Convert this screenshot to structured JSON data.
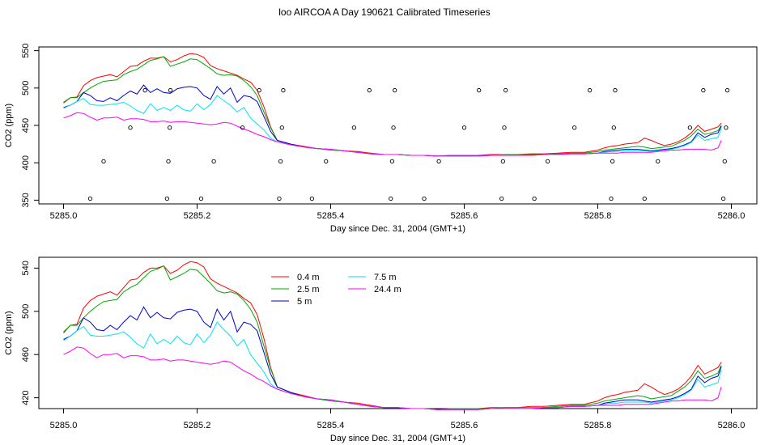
{
  "title": "loo AIRCOA A  Day 190621  Calibrated Timeseries",
  "chart_data": [
    {
      "type": "line",
      "xlabel": "Day since Dec. 31, 2004 (GMT+1)",
      "ylabel": "CO2 (ppm)",
      "xlim": [
        5285.0,
        5286.0
      ],
      "ylim": [
        345,
        555
      ],
      "xticks": [
        5285.0,
        5285.2,
        5285.4,
        5285.6,
        5285.8,
        5286.0
      ],
      "xtick_labels": [
        "5285.0",
        "5285.2",
        "5285.4",
        "5285.6",
        "5285.8",
        "5286.0"
      ],
      "yticks": [
        350,
        400,
        450,
        500,
        550
      ],
      "ytick_labels": [
        "350",
        "400",
        "450",
        "500",
        "550"
      ],
      "grid": false,
      "legend": null,
      "series_ref": "shared",
      "points": {
        "name": "",
        "x": [
          5285.04,
          5285.06,
          5285.1,
          5285.122,
          5285.155,
          5285.157,
          5285.159,
          5285.16,
          5285.206,
          5285.225,
          5285.268,
          5285.293,
          5285.323,
          5285.325,
          5285.327,
          5285.329,
          5285.372,
          5285.393,
          5285.435,
          5285.458,
          5285.49,
          5285.492,
          5285.494,
          5285.496,
          5285.54,
          5285.562,
          5285.6,
          5285.622,
          5285.656,
          5285.658,
          5285.66,
          5285.662,
          5285.705,
          5285.725,
          5285.765,
          5285.788,
          5285.82,
          5285.822,
          5285.824,
          5285.826,
          5285.87,
          5285.89,
          5285.938,
          5285.958,
          5285.988,
          5285.99,
          5285.992,
          5285.994
        ],
        "y": [
          352,
          402,
          447,
          497,
          352,
          402,
          447,
          497,
          352,
          402,
          447,
          497,
          352,
          402,
          447,
          497,
          352,
          402,
          447,
          497,
          352,
          402,
          447,
          497,
          352,
          402,
          447,
          497,
          352,
          402,
          447,
          497,
          352,
          402,
          447,
          497,
          352,
          402,
          447,
          497,
          352,
          402,
          447,
          497,
          352,
          402,
          447,
          497
        ]
      }
    },
    {
      "type": "line",
      "xlabel": "Day since Dec. 31, 2004 (GMT+1)",
      "ylabel": "CO2 (ppm)",
      "xlim": [
        5285.0,
        5286.0
      ],
      "ylim": [
        410,
        550
      ],
      "xticks": [
        5285.0,
        5285.2,
        5285.4,
        5285.6,
        5285.8,
        5286.0
      ],
      "xtick_labels": [
        "5285.0",
        "5285.2",
        "5285.4",
        "5285.6",
        "5285.8",
        "5286.0"
      ],
      "yticks": [
        420,
        460,
        500,
        540
      ],
      "ytick_labels": [
        "420",
        "460",
        "500",
        "540"
      ],
      "grid": false,
      "legend": "top-left inside plot",
      "series_ref": "shared"
    }
  ],
  "shared_x": [
    5285.0,
    5285.01,
    5285.02,
    5285.03,
    5285.04,
    5285.05,
    5285.06,
    5285.07,
    5285.08,
    5285.09,
    5285.1,
    5285.11,
    5285.12,
    5285.13,
    5285.14,
    5285.15,
    5285.16,
    5285.17,
    5285.18,
    5285.19,
    5285.2,
    5285.21,
    5285.22,
    5285.23,
    5285.24,
    5285.25,
    5285.26,
    5285.27,
    5285.28,
    5285.29,
    5285.3,
    5285.31,
    5285.32,
    5285.34,
    5285.36,
    5285.38,
    5285.4,
    5285.42,
    5285.44,
    5285.46,
    5285.48,
    5285.5,
    5285.52,
    5285.54,
    5285.56,
    5285.58,
    5285.6,
    5285.62,
    5285.64,
    5285.66,
    5285.68,
    5285.7,
    5285.72,
    5285.74,
    5285.76,
    5285.78,
    5285.8,
    5285.81,
    5285.82,
    5285.83,
    5285.84,
    5285.85,
    5285.86,
    5285.87,
    5285.88,
    5285.89,
    5285.9,
    5285.91,
    5285.92,
    5285.93,
    5285.94,
    5285.95,
    5285.96,
    5285.97,
    5285.98,
    5285.985
  ],
  "series": [
    {
      "name": "0.4 m",
      "color": "#ff0000",
      "values": [
        480,
        487,
        488,
        503,
        510,
        514,
        516,
        518,
        515,
        522,
        529,
        530,
        536,
        540,
        540,
        542,
        535,
        538,
        543,
        546,
        545,
        541,
        530,
        526,
        523,
        520,
        517,
        512,
        508,
        497,
        475,
        448,
        430,
        425,
        422,
        419,
        418,
        416,
        415,
        413,
        411,
        411,
        410,
        410,
        409,
        410,
        410,
        410,
        411,
        411,
        411,
        412,
        412,
        413,
        414,
        414,
        417,
        420,
        422,
        423,
        425,
        426,
        427,
        433,
        430,
        426,
        423,
        425,
        428,
        433,
        440,
        450,
        442,
        445,
        448,
        453
      ]
    },
    {
      "name": "2.5 m",
      "color": "#00aa00",
      "values": [
        481,
        487,
        487,
        494,
        500,
        505,
        509,
        510,
        511,
        518,
        522,
        525,
        531,
        537,
        539,
        542,
        529,
        532,
        535,
        539,
        538,
        532,
        526,
        519,
        517,
        518,
        516,
        510,
        502,
        490,
        468,
        447,
        430,
        425,
        421,
        419,
        417,
        416,
        414,
        412,
        411,
        411,
        410,
        410,
        409,
        410,
        410,
        410,
        410,
        411,
        411,
        411,
        411,
        412,
        413,
        413,
        415,
        417,
        418,
        419,
        420,
        421,
        422,
        421,
        419,
        420,
        421,
        422,
        426,
        430,
        436,
        445,
        438,
        440,
        443,
        450
      ]
    },
    {
      "name": "5 m",
      "color": "#0000cc",
      "values": [
        474,
        477,
        482,
        494,
        490,
        483,
        482,
        487,
        483,
        490,
        496,
        492,
        504,
        494,
        499,
        494,
        493,
        499,
        501,
        502,
        500,
        490,
        485,
        502,
        492,
        500,
        481,
        490,
        488,
        482,
        462,
        442,
        430,
        425,
        421,
        419,
        418,
        416,
        414,
        412,
        411,
        411,
        410,
        410,
        409,
        409,
        409,
        409,
        410,
        410,
        410,
        410,
        411,
        411,
        412,
        412,
        413,
        415,
        416,
        417,
        418,
        418,
        418,
        417,
        416,
        417,
        418,
        419,
        421,
        424,
        428,
        440,
        434,
        438,
        440,
        449
      ]
    },
    {
      "name": "7.5 m",
      "color": "#00e5ee",
      "values": [
        473,
        477,
        482,
        486,
        478,
        477,
        477,
        478,
        479,
        481,
        476,
        470,
        466,
        479,
        470,
        474,
        470,
        477,
        471,
        469,
        479,
        471,
        478,
        490,
        483,
        477,
        468,
        474,
        460,
        452,
        444,
        433,
        428,
        424,
        421,
        419,
        418,
        416,
        414,
        412,
        411,
        411,
        410,
        410,
        409,
        409,
        409,
        409,
        410,
        410,
        410,
        410,
        411,
        411,
        412,
        412,
        413,
        414,
        415,
        415,
        416,
        416,
        416,
        416,
        415,
        416,
        417,
        418,
        420,
        423,
        427,
        437,
        430,
        432,
        434,
        446
      ]
    },
    {
      "name": "24.4 m",
      "color": "#ff00ff",
      "values": [
        460,
        463,
        467,
        466,
        461,
        457,
        460,
        460,
        461,
        457,
        459,
        459,
        458,
        455,
        455,
        456,
        454,
        455,
        455,
        454,
        453,
        452,
        451,
        452,
        454,
        453,
        449,
        445,
        442,
        438,
        435,
        431,
        428,
        424,
        421,
        419,
        418,
        416,
        414,
        412,
        411,
        411,
        410,
        410,
        409,
        409,
        409,
        409,
        410,
        410,
        410,
        410,
        411,
        411,
        412,
        412,
        413,
        413,
        413,
        413,
        414,
        414,
        414,
        414,
        414,
        415,
        416,
        417,
        417,
        418,
        418,
        418,
        418,
        417,
        420,
        430
      ]
    }
  ],
  "legend_entries": [
    "0.4 m",
    "2.5 m",
    "5 m",
    "7.5 m",
    "24.4 m"
  ]
}
